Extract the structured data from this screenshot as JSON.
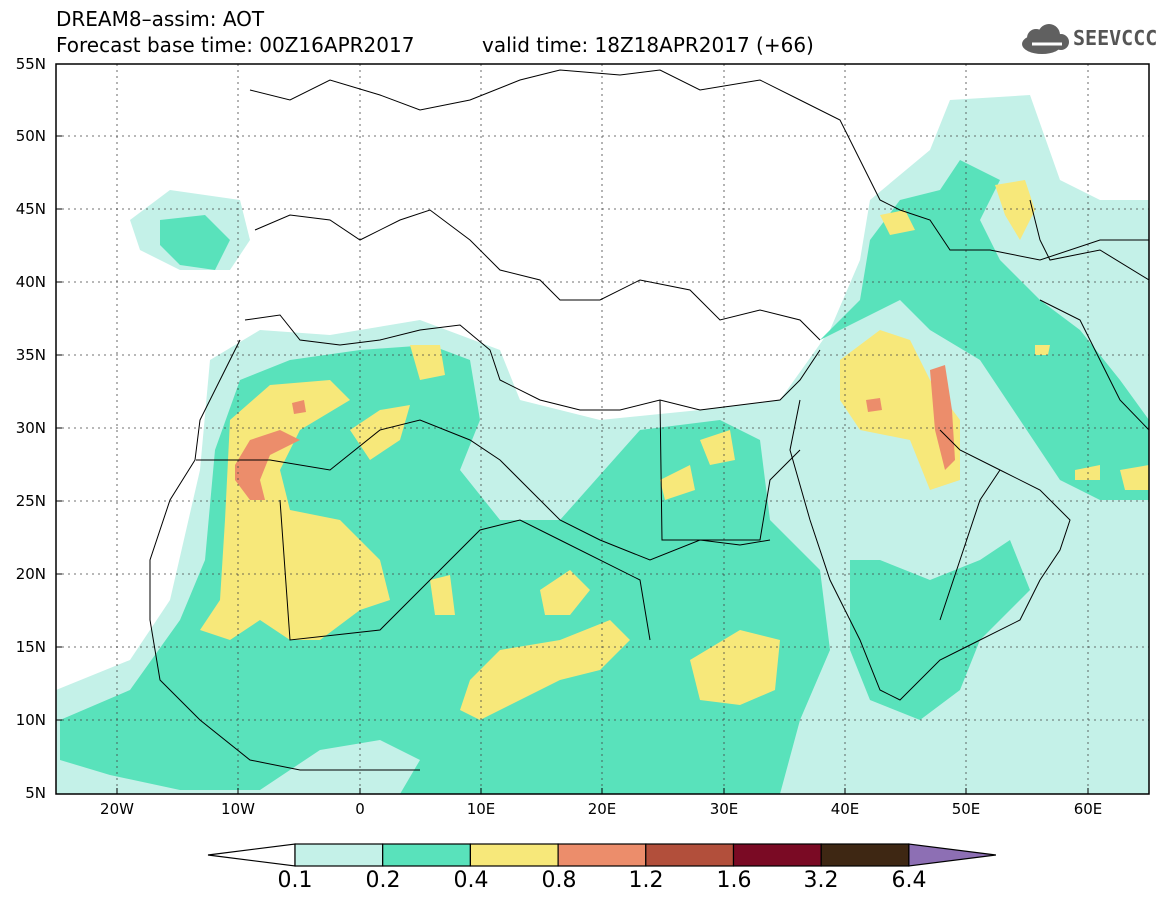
{
  "title": {
    "line1": "DREAM8–assim: AOT",
    "line2": "Forecast base time: 00Z16APR2017",
    "valid": "valid time: 18Z18APR2017 (+66)"
  },
  "logo": {
    "text": "SEEVCCC",
    "icon": "cloud-icon"
  },
  "map": {
    "lat_labels": [
      "55N",
      "50N",
      "45N",
      "40N",
      "35N",
      "30N",
      "25N",
      "20N",
      "15N",
      "10N",
      "5N"
    ],
    "lon_labels": [
      "20W",
      "10W",
      "0",
      "10E",
      "20E",
      "30E",
      "40E",
      "50E",
      "60E"
    ],
    "lat_range": [
      5,
      55
    ],
    "lon_range": [
      -25,
      65
    ]
  },
  "colorbar": {
    "levels": [
      "0.1",
      "0.2",
      "0.4",
      "0.8",
      "1.2",
      "1.6",
      "3.2",
      "6.4"
    ],
    "colors": [
      "#ffffff",
      "#c4f1e8",
      "#59e2bb",
      "#f7e87a",
      "#ec8d6b",
      "#b24f3b",
      "#7a0a24",
      "#3e2713",
      "#8d6fb4"
    ]
  }
}
